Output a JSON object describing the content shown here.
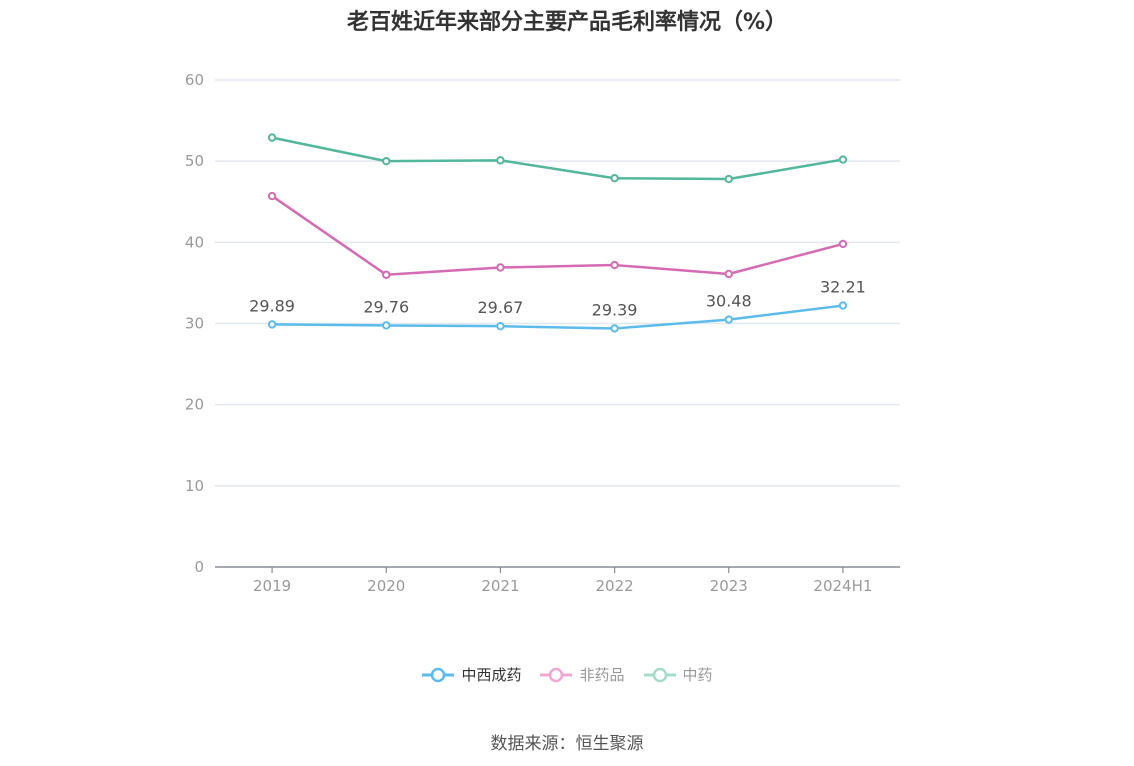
{
  "title": "老百姓近年来部分主要产品毛利率情况（%）",
  "source": "数据来源：恒生聚源",
  "chart_data": {
    "type": "line",
    "title": "老百姓近年来部分主要产品毛利率情况（%）",
    "categories": [
      "2019",
      "2020",
      "2021",
      "2022",
      "2023",
      "2024H1"
    ],
    "ylim": [
      0,
      60
    ],
    "yticks": [
      0,
      10,
      20,
      30,
      40,
      50,
      60
    ],
    "grid": true,
    "legend_position": "bottom",
    "series": [
      {
        "name": "中西成药",
        "color": "#5bbcec",
        "values": [
          29.89,
          29.76,
          29.67,
          29.39,
          30.48,
          32.21
        ],
        "labels": [
          "29.89",
          "29.76",
          "29.67",
          "29.39",
          "30.48",
          "32.21"
        ]
      },
      {
        "name": "非药品",
        "color": "#d46bb3",
        "values": [
          45.7,
          36.0,
          36.9,
          37.2,
          36.1,
          39.8
        ]
      },
      {
        "name": "中药",
        "color": "#52b79b",
        "values": [
          52.9,
          50.0,
          50.1,
          47.9,
          47.8,
          50.2
        ]
      }
    ]
  }
}
